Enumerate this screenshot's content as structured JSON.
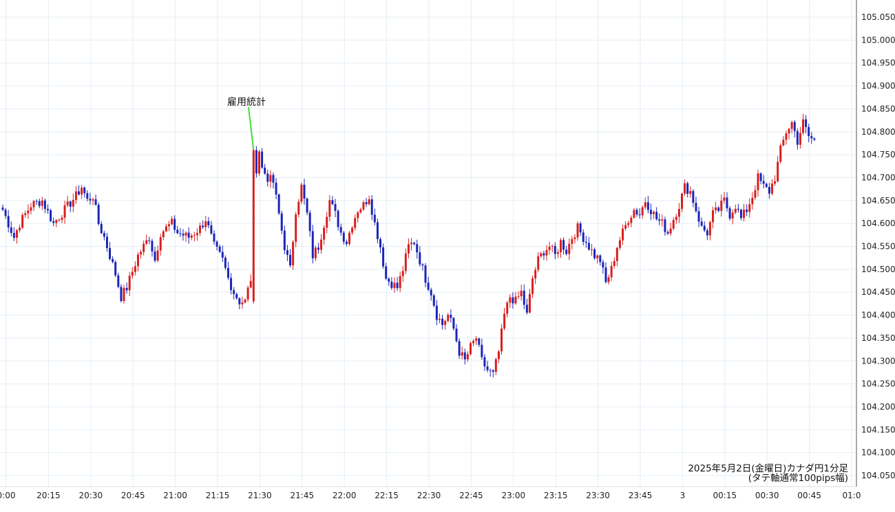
{
  "chart_data": {
    "type": "candlestick",
    "title": "",
    "caption_line1": "2025年5月2日(金曜日)カナダ円1分足",
    "caption_line2": "(タテ軸通常100pips幅)",
    "annotation": {
      "label": "雇用統計",
      "time": "21:30"
    },
    "ylim": [
      104.025,
      105.075
    ],
    "y_ticks": [
      "105.050",
      "105.000",
      "104.950",
      "104.900",
      "104.850",
      "104.800",
      "104.750",
      "104.700",
      "104.650",
      "104.600",
      "104.550",
      "104.500",
      "104.450",
      "104.400",
      "104.350",
      "104.300",
      "104.250",
      "104.200",
      "104.150",
      "104.100",
      "104.050"
    ],
    "x_ticks": [
      "0:00",
      "20:15",
      "20:30",
      "20:45",
      "21:00",
      "21:15",
      "21:30",
      "21:45",
      "22:00",
      "22:15",
      "22:30",
      "22:45",
      "23:00",
      "23:15",
      "23:30",
      "23:45",
      "3",
      "00:15",
      "00:30",
      "00:45",
      "01:0"
    ],
    "grid": true,
    "colors": {
      "up": "#d81e1e",
      "down": "#1a24b8",
      "grid": "#e4eef6",
      "annotation_line": "#3ee12e"
    },
    "price_path": [
      [
        0,
        104.63
      ],
      [
        4,
        104.57
      ],
      [
        6,
        104.6
      ],
      [
        10,
        104.64
      ],
      [
        14,
        104.65
      ],
      [
        18,
        104.6
      ],
      [
        22,
        104.63
      ],
      [
        26,
        104.66
      ],
      [
        28,
        104.68
      ],
      [
        30,
        104.65
      ],
      [
        32,
        104.66
      ],
      [
        34,
        104.6
      ],
      [
        36,
        104.57
      ],
      [
        40,
        104.49
      ],
      [
        42,
        104.44
      ],
      [
        44,
        104.46
      ],
      [
        48,
        104.53
      ],
      [
        52,
        104.57
      ],
      [
        54,
        104.52
      ],
      [
        56,
        104.58
      ],
      [
        60,
        104.6
      ],
      [
        62,
        104.58
      ],
      [
        66,
        104.57
      ],
      [
        70,
        104.59
      ],
      [
        72,
        104.61
      ],
      [
        75,
        104.55
      ],
      [
        78,
        104.52
      ],
      [
        80,
        104.48
      ],
      [
        82,
        104.45
      ],
      [
        84,
        104.43
      ],
      [
        86,
        104.43
      ],
      [
        88,
        104.48
      ],
      [
        89,
        104.65
      ],
      [
        90,
        104.72
      ],
      [
        91,
        104.76
      ],
      [
        92,
        104.72
      ],
      [
        94,
        104.7
      ],
      [
        96,
        104.69
      ],
      [
        98,
        104.62
      ],
      [
        100,
        104.55
      ],
      [
        102,
        104.5
      ],
      [
        104,
        104.63
      ],
      [
        106,
        104.68
      ],
      [
        108,
        104.62
      ],
      [
        110,
        104.53
      ],
      [
        112,
        104.55
      ],
      [
        114,
        104.6
      ],
      [
        116,
        104.65
      ],
      [
        118,
        104.62
      ],
      [
        120,
        104.58
      ],
      [
        122,
        104.56
      ],
      [
        124,
        104.6
      ],
      [
        126,
        104.63
      ],
      [
        128,
        104.64
      ],
      [
        130,
        104.66
      ],
      [
        132,
        104.6
      ],
      [
        134,
        104.55
      ],
      [
        136,
        104.48
      ],
      [
        138,
        104.47
      ],
      [
        140,
        104.46
      ],
      [
        142,
        104.5
      ],
      [
        144,
        104.55
      ],
      [
        146,
        104.56
      ],
      [
        148,
        104.52
      ],
      [
        150,
        104.48
      ],
      [
        152,
        104.45
      ],
      [
        154,
        104.4
      ],
      [
        156,
        104.38
      ],
      [
        158,
        104.4
      ],
      [
        160,
        104.37
      ],
      [
        162,
        104.32
      ],
      [
        164,
        104.3
      ],
      [
        166,
        104.33
      ],
      [
        168,
        104.35
      ],
      [
        170,
        104.3
      ],
      [
        172,
        104.28
      ],
      [
        174,
        104.27
      ],
      [
        176,
        104.32
      ],
      [
        178,
        104.4
      ],
      [
        180,
        104.44
      ],
      [
        182,
        104.43
      ],
      [
        184,
        104.45
      ],
      [
        186,
        104.4
      ],
      [
        188,
        104.48
      ],
      [
        190,
        104.52
      ],
      [
        192,
        104.54
      ],
      [
        194,
        104.55
      ],
      [
        196,
        104.53
      ],
      [
        198,
        104.56
      ],
      [
        200,
        104.54
      ],
      [
        202,
        104.57
      ],
      [
        204,
        104.59
      ],
      [
        206,
        104.57
      ],
      [
        208,
        104.55
      ],
      [
        210,
        104.53
      ],
      [
        212,
        104.52
      ],
      [
        214,
        104.47
      ],
      [
        216,
        104.5
      ],
      [
        218,
        104.55
      ],
      [
        220,
        104.58
      ],
      [
        222,
        104.61
      ],
      [
        224,
        104.63
      ],
      [
        226,
        104.62
      ],
      [
        228,
        104.65
      ],
      [
        230,
        104.63
      ],
      [
        232,
        104.61
      ],
      [
        234,
        104.6
      ],
      [
        236,
        104.58
      ],
      [
        238,
        104.61
      ],
      [
        240,
        104.64
      ],
      [
        242,
        104.68
      ],
      [
        244,
        104.67
      ],
      [
        246,
        104.63
      ],
      [
        248,
        104.59
      ],
      [
        250,
        104.58
      ],
      [
        252,
        104.62
      ],
      [
        254,
        104.63
      ],
      [
        256,
        104.65
      ],
      [
        258,
        104.62
      ],
      [
        260,
        104.64
      ],
      [
        262,
        104.61
      ],
      [
        264,
        104.63
      ],
      [
        266,
        104.66
      ],
      [
        268,
        104.7
      ],
      [
        270,
        104.68
      ],
      [
        272,
        104.67
      ],
      [
        274,
        104.7
      ],
      [
        276,
        104.76
      ],
      [
        278,
        104.8
      ],
      [
        280,
        104.82
      ],
      [
        282,
        104.78
      ],
      [
        284,
        104.82
      ],
      [
        286,
        104.79
      ],
      [
        288,
        104.78
      ]
    ]
  }
}
